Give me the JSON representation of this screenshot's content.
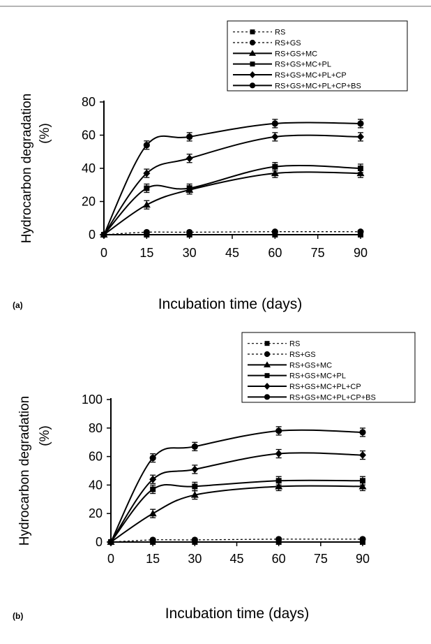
{
  "chart_data": [
    {
      "panel_label": "(a)",
      "type": "line",
      "xlabel": "Incubation time (days)",
      "ylabel_line1": "Hydrocarbon degradation",
      "ylabel_line2": "(%)",
      "xlim": [
        0,
        90
      ],
      "ylim": [
        0,
        80
      ],
      "xticks": [
        0,
        15,
        30,
        45,
        60,
        75,
        90
      ],
      "yticks": [
        0,
        20,
        40,
        60,
        80
      ],
      "legend_position": "top-right",
      "x": [
        0,
        15,
        30,
        60,
        90
      ],
      "series": [
        {
          "name": "RS",
          "values": [
            0,
            0,
            0,
            0,
            0
          ],
          "dash": "dotted",
          "marker": "square"
        },
        {
          "name": "RS+GS",
          "values": [
            0,
            1.5,
            1.5,
            1.8,
            1.8
          ],
          "dash": "dotted",
          "marker": "circle"
        },
        {
          "name": "RS+GS+MC",
          "values": [
            0,
            18,
            27,
            37,
            37
          ],
          "dash": "solid",
          "marker": "triangle"
        },
        {
          "name": "RS+GS+MC+PL",
          "values": [
            0,
            28,
            28,
            41,
            40
          ],
          "dash": "solid",
          "marker": "square"
        },
        {
          "name": "RS+GS+MC+PL+CP",
          "values": [
            0,
            37,
            46,
            59,
            59
          ],
          "dash": "solid",
          "marker": "diamond"
        },
        {
          "name": "RS+GS+MC+PL+CP+BS",
          "values": [
            0,
            54,
            59,
            67,
            67
          ],
          "dash": "solid",
          "marker": "circle"
        }
      ]
    },
    {
      "panel_label": "(b)",
      "type": "line",
      "xlabel": "Incubation time (days)",
      "ylabel_line1": "Hydrocarbon degradation",
      "ylabel_line2": "(%)",
      "xlim": [
        0,
        90
      ],
      "ylim": [
        0,
        100
      ],
      "xticks": [
        0,
        15,
        30,
        45,
        60,
        75,
        90
      ],
      "yticks": [
        0,
        20,
        40,
        60,
        80,
        100
      ],
      "legend_position": "top-right",
      "x": [
        0,
        15,
        30,
        60,
        90
      ],
      "series": [
        {
          "name": "RS",
          "values": [
            0,
            0,
            0,
            0,
            0
          ],
          "dash": "dotted",
          "marker": "square"
        },
        {
          "name": "RS+GS",
          "values": [
            0,
            1.5,
            1.5,
            2,
            2
          ],
          "dash": "dotted",
          "marker": "circle"
        },
        {
          "name": "RS+GS+MC",
          "values": [
            0,
            20,
            33,
            39,
            39
          ],
          "dash": "solid",
          "marker": "triangle"
        },
        {
          "name": "RS+GS+MC+PL",
          "values": [
            0,
            37,
            39,
            43,
            43
          ],
          "dash": "solid",
          "marker": "square"
        },
        {
          "name": "RS+GS+MC+PL+CP",
          "values": [
            0,
            44,
            51,
            62,
            61
          ],
          "dash": "solid",
          "marker": "diamond"
        },
        {
          "name": "RS+GS+MC+PL+CP+BS",
          "values": [
            0,
            59,
            67,
            78,
            77
          ],
          "dash": "solid",
          "marker": "circle"
        }
      ]
    }
  ]
}
